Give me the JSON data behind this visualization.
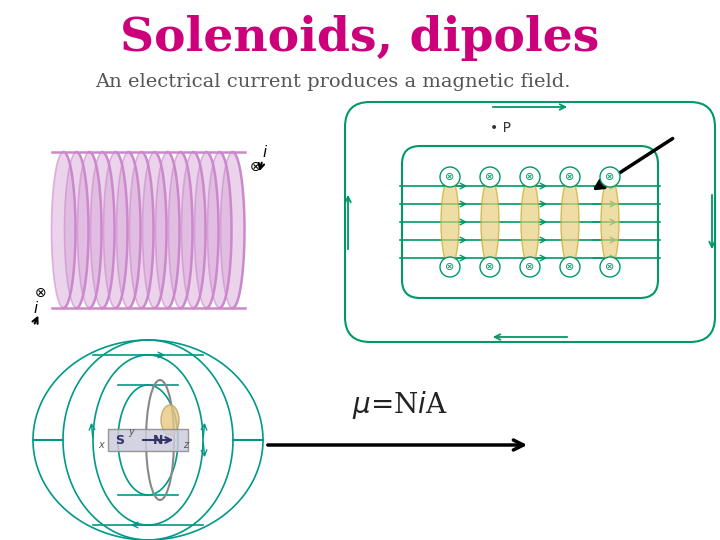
{
  "title": "Solenoids, dipoles",
  "title_color": "#CC007A",
  "title_fontsize": 34,
  "subtitle": "An electrical current produces a magnetic field.",
  "subtitle_color": "#555555",
  "subtitle_fontsize": 14,
  "formula": "$\\mu$=N$i$A",
  "formula_fontsize": 20,
  "formula_color": "#222222",
  "bg_color": "#ffffff",
  "coil_color": "#CC88CC",
  "field_color": "#009966",
  "yellow_color": "#E8D080"
}
